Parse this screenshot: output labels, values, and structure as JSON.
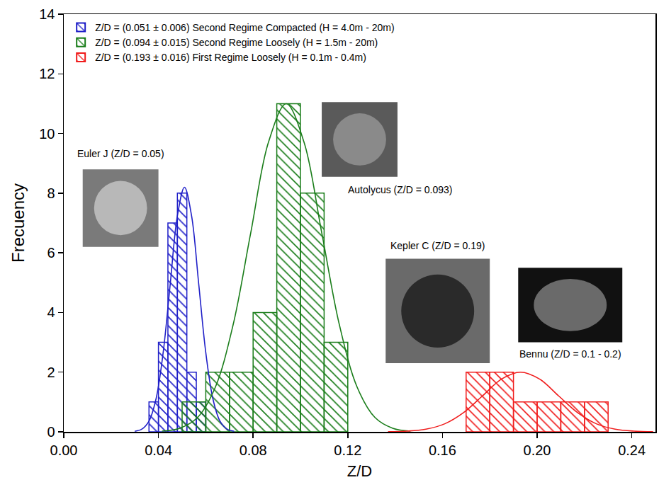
{
  "chart_data": {
    "type": "histogram",
    "x_label": "Z/D",
    "y_label": "Frecuency",
    "xlim": [
      0,
      0.25
    ],
    "xticks": [
      {
        "value": 0,
        "label": "0.00"
      },
      {
        "value": 0.04,
        "label": "0.04"
      },
      {
        "value": 0.08,
        "label": "0.08"
      },
      {
        "value": 0.12,
        "label": "0.12"
      },
      {
        "value": 0.16,
        "label": "0.16"
      },
      {
        "value": 0.2,
        "label": "0.20"
      },
      {
        "value": 0.24,
        "label": "0.24"
      }
    ],
    "ylim": [
      0,
      14
    ],
    "yticks": [
      0,
      2,
      4,
      6,
      8,
      10,
      12,
      14
    ],
    "grid": false,
    "legend": "upper left",
    "series": [
      {
        "name": "Z/D = (0.051 ± 0.006) Second Regime Compacted (H = 4.0m - 20m)",
        "color": "#2020c8",
        "bins": [
          0.036,
          0.04,
          0.044,
          0.048,
          0.052,
          0.056,
          0.06
        ],
        "values": [
          1,
          3,
          7,
          8,
          2,
          1
        ],
        "curve": {
          "x": [
            0.03,
            0.033,
            0.036,
            0.039,
            0.042,
            0.045,
            0.048,
            0.051,
            0.054,
            0.057,
            0.06,
            0.063,
            0.066,
            0.069,
            0.072
          ],
          "values": [
            0.018,
            0.091,
            0.36,
            1.11,
            2.66,
            4.97,
            7.24,
            8.2,
            7.24,
            4.97,
            2.66,
            1.11,
            0.36,
            0.091,
            0.018
          ]
        }
      },
      {
        "name": "Z/D = (0.094 ± 0.015) Second Regime Loosely (H = 1.5m - 20m)",
        "color": "#1a7d1a",
        "bins": [
          0.05,
          0.06,
          0.07,
          0.08,
          0.09,
          0.1,
          0.11,
          0.12
        ],
        "values": [
          1,
          2,
          2,
          4,
          11,
          8,
          3
        ],
        "curve": {
          "x": [
            0.0415,
            0.049,
            0.0565,
            0.064,
            0.0715,
            0.079,
            0.0865,
            0.094,
            0.1015,
            0.109,
            0.1165,
            0.124,
            0.1315,
            0.139,
            0.1465
          ],
          "values": [
            0.024,
            0.12,
            0.48,
            1.49,
            3.57,
            6.67,
            9.71,
            11,
            9.71,
            6.67,
            3.57,
            1.49,
            0.48,
            0.12,
            0.024
          ]
        }
      },
      {
        "name": "Z/D = (0.193 ± 0.016) First Regime Loosely (H = 0.1m - 0.4m)",
        "color": "#f01c1c",
        "bins": [
          0.17,
          0.18,
          0.19,
          0.2,
          0.21,
          0.22,
          0.23
        ],
        "values": [
          2,
          2,
          1,
          1,
          1,
          1
        ],
        "curve": {
          "x": [
            0.137,
            0.145,
            0.153,
            0.161,
            0.169,
            0.177,
            0.185,
            0.193,
            0.201,
            0.209,
            0.217,
            0.225,
            0.233,
            0.241,
            0.249
          ],
          "values": [
            0.004,
            0.022,
            0.088,
            0.27,
            0.65,
            1.21,
            1.77,
            2,
            1.77,
            1.21,
            0.65,
            0.27,
            0.088,
            0.022,
            0.004
          ]
        }
      }
    ],
    "annotations": [
      "Euler J (Z/D = 0.05)",
      "Autolycus (Z/D = 0.093)",
      "Kepler C (Z/D = 0.19)",
      "Bennu (Z/D = 0.1 - 0.2)"
    ]
  }
}
